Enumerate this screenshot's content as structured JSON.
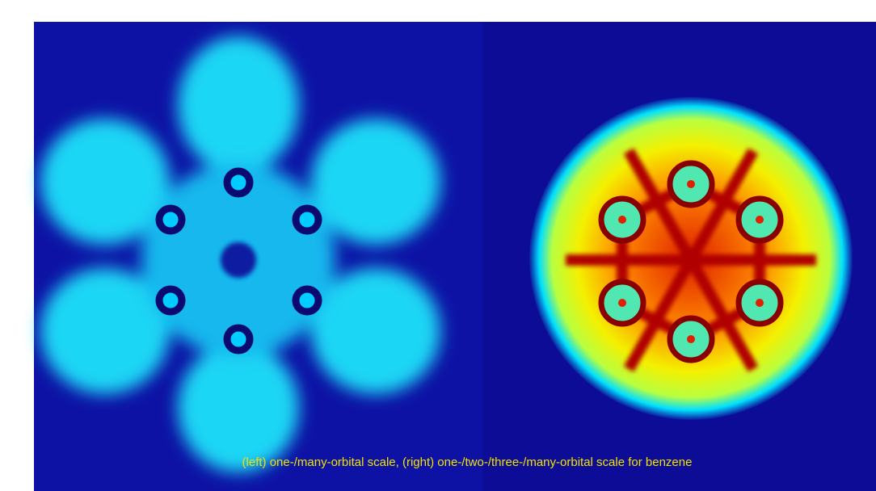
{
  "caption": "(left) one-/many-orbital scale, (right) one-/two-/three-/many-orbital scale for benzene"
}
